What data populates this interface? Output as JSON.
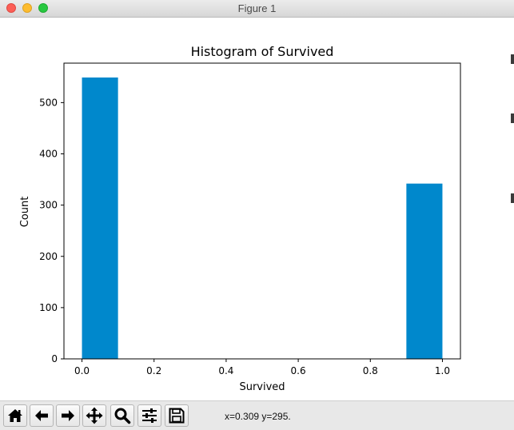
{
  "window": {
    "title": "Figure 1"
  },
  "toolbar": {
    "buttons": [
      {
        "id": "home",
        "icon": "home-icon"
      },
      {
        "id": "back",
        "icon": "arrow-left-icon"
      },
      {
        "id": "forward",
        "icon": "arrow-right-icon"
      },
      {
        "id": "pan",
        "icon": "move-icon"
      },
      {
        "id": "zoom",
        "icon": "magnifier-icon"
      },
      {
        "id": "configure",
        "icon": "sliders-icon"
      },
      {
        "id": "save",
        "icon": "floppy-disk-icon"
      }
    ],
    "coords": "x=0.309 y=295."
  },
  "colors": {
    "bar": "#0088cc",
    "axes": "#000000"
  },
  "chart_data": {
    "type": "bar",
    "title": "Histogram of Survived",
    "xlabel": "Survived",
    "ylabel": "Count",
    "xlim": [
      -0.05,
      1.05
    ],
    "ylim": [
      0,
      577
    ],
    "xticks": [
      "0.0",
      "0.2",
      "0.4",
      "0.6",
      "0.8",
      "1.0"
    ],
    "xtick_values": [
      0.0,
      0.2,
      0.4,
      0.6,
      0.8,
      1.0
    ],
    "yticks": [
      "0",
      "100",
      "200",
      "300",
      "400",
      "500"
    ],
    "ytick_values": [
      0,
      100,
      200,
      300,
      400,
      500
    ],
    "bins": [
      {
        "x0": 0.0,
        "x1": 0.1,
        "count": 549
      },
      {
        "x0": 0.1,
        "x1": 0.2,
        "count": 0
      },
      {
        "x0": 0.2,
        "x1": 0.3,
        "count": 0
      },
      {
        "x0": 0.3,
        "x1": 0.4,
        "count": 0
      },
      {
        "x0": 0.4,
        "x1": 0.5,
        "count": 0
      },
      {
        "x0": 0.5,
        "x1": 0.6,
        "count": 0
      },
      {
        "x0": 0.6,
        "x1": 0.7,
        "count": 0
      },
      {
        "x0": 0.7,
        "x1": 0.8,
        "count": 0
      },
      {
        "x0": 0.8,
        "x1": 0.9,
        "count": 0
      },
      {
        "x0": 0.9,
        "x1": 1.0,
        "count": 342
      }
    ],
    "grid": false,
    "legend": "none"
  }
}
